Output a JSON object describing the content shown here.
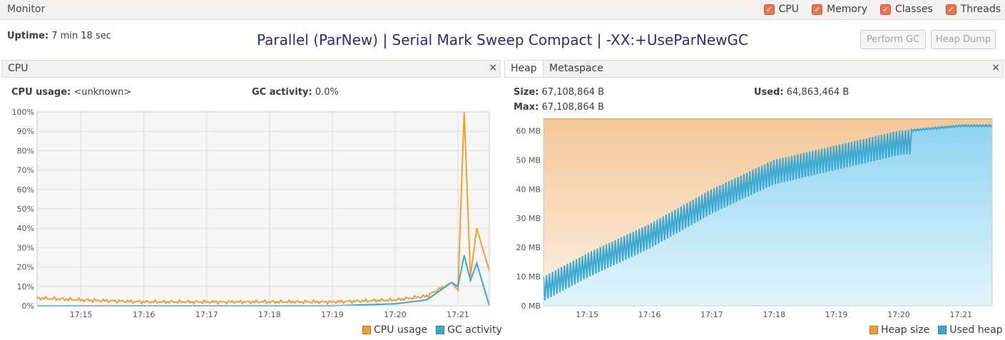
{
  "window": {
    "title": "Monitor",
    "toggles": [
      {
        "label": "CPU",
        "checked": true
      },
      {
        "label": "Memory",
        "checked": true
      },
      {
        "label": "Classes",
        "checked": true
      },
      {
        "label": "Threads",
        "checked": true
      }
    ]
  },
  "header": {
    "uptime_label": "Uptime:",
    "uptime_value": "7 min 18 sec",
    "gc_title": "Parallel (ParNew) | Serial Mark Sweep Compact | -XX:+UseParNewGC",
    "perform_gc": "Perform GC",
    "heap_dump": "Heap Dump"
  },
  "cpu_panel": {
    "tab": "CPU",
    "close": "×",
    "cpu_usage_label": "CPU usage:",
    "cpu_usage_value": "<unknown>",
    "gc_activity_label": "GC activity:",
    "gc_activity_value": "0.0%",
    "legend": [
      "CPU usage",
      "GC activity"
    ]
  },
  "heap_panel": {
    "tabs": [
      "Heap",
      "Metaspace"
    ],
    "close": "×",
    "size_label": "Size:",
    "size_value": "67,108,864 B",
    "used_label": "Used:",
    "used_value": "64,863,464 B",
    "max_label": "Max:",
    "max_value": "67,108,864 B",
    "legend": [
      "Heap size",
      "Used heap"
    ]
  },
  "colors": {
    "cpu": "#f0a030",
    "gc": "#3aa8d0",
    "heap_size": "#f0a030",
    "used_heap": "#3aa8d0"
  },
  "chart_data": [
    {
      "type": "line",
      "ylim": [
        0,
        100
      ],
      "yticks": [
        "0%",
        "10%",
        "20%",
        "30%",
        "40%",
        "50%",
        "60%",
        "70%",
        "80%",
        "90%",
        "100%"
      ],
      "xticks": [
        "17:15",
        "17:16",
        "17:17",
        "17:18",
        "17:19",
        "17:20",
        "17:21"
      ],
      "series": [
        {
          "name": "CPU usage",
          "x": [
            "17:14.3",
            "17:15",
            "17:16",
            "17:17",
            "17:18",
            "17:19",
            "17:20",
            "17:20.5",
            "17:20.9",
            "17:21",
            "17:21.1",
            "17:21.2",
            "17:21.3",
            "17:21.5"
          ],
          "values": [
            4,
            3,
            2,
            2,
            2,
            2,
            3,
            5,
            12,
            8,
            100,
            15,
            40,
            18
          ]
        },
        {
          "name": "GC activity",
          "x": [
            "17:14.3",
            "17:18",
            "17:19",
            "17:20",
            "17:20.5",
            "17:20.9",
            "17:21",
            "17:21.1",
            "17:21.2",
            "17:21.3",
            "17:21.5"
          ],
          "values": [
            0,
            0,
            0,
            1,
            3,
            12,
            10,
            26,
            13,
            22,
            0
          ]
        }
      ]
    },
    {
      "type": "area",
      "ylim": [
        0,
        64
      ],
      "yticks": [
        "0 MB",
        "10 MB",
        "20 MB",
        "30 MB",
        "40 MB",
        "50 MB",
        "60 MB"
      ],
      "xticks": [
        "17:15",
        "17:16",
        "17:17",
        "17:18",
        "17:19",
        "17:20",
        "17:21"
      ],
      "series": [
        {
          "name": "Heap size",
          "x": [
            "17:14.3",
            "17:21.5"
          ],
          "values": [
            64,
            64
          ]
        },
        {
          "name": "Used heap",
          "x": [
            "17:14.3",
            "17:15",
            "17:16",
            "17:17",
            "17:18",
            "17:19",
            "17:20",
            "17:21",
            "17:21.5"
          ],
          "values": [
            10,
            18,
            28,
            40,
            50,
            55,
            60,
            62,
            62
          ]
        }
      ]
    }
  ]
}
